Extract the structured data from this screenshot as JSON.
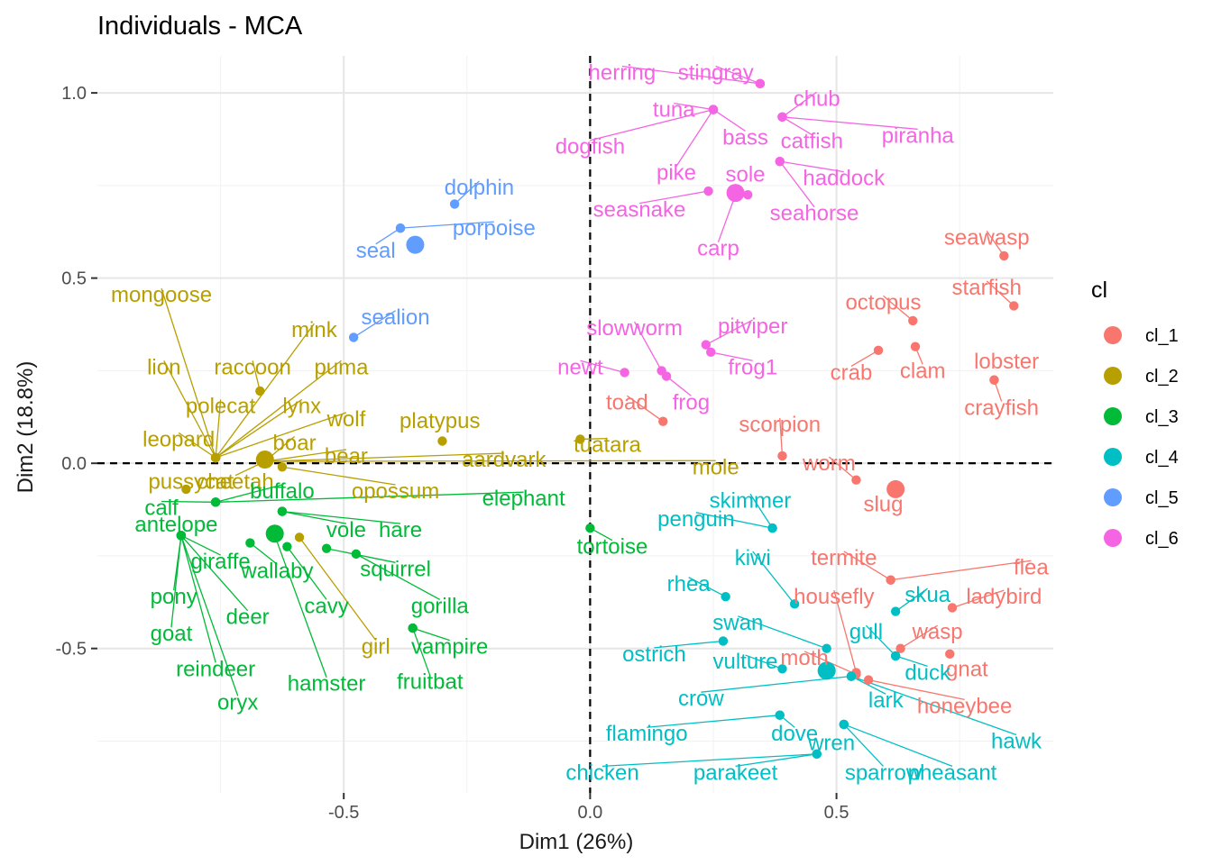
{
  "chart_data": {
    "type": "scatter",
    "title": "Individuals - MCA",
    "xlabel": "Dim1 (26%)",
    "ylabel": "Dim2 (18.8%)",
    "xlim": [
      -1.0,
      0.94
    ],
    "ylim": [
      -0.89,
      1.1
    ],
    "x_ticks": [
      -0.5,
      0.0,
      0.5
    ],
    "y_ticks": [
      -0.5,
      0.0,
      0.5,
      1.0
    ],
    "x_tick_labels": [
      "-0.5",
      "0.0",
      "0.5"
    ],
    "y_tick_labels": [
      "-0.5",
      "0.0",
      "0.5",
      "1.0"
    ],
    "grid": true,
    "reference_lines": [
      0,
      0
    ],
    "legend": {
      "title": "cl",
      "placement": "right",
      "entries": [
        "cl_1",
        "cl_2",
        "cl_3",
        "cl_4",
        "cl_5",
        "cl_6"
      ]
    },
    "colors": {
      "cl_1": "#F8766D",
      "cl_2": "#B79F00",
      "cl_3": "#00BA38",
      "cl_4": "#00BFC4",
      "cl_5": "#619CFF",
      "cl_6": "#F564E3"
    },
    "centroids": [
      {
        "cluster": "cl_1",
        "x": 0.62,
        "y": -0.07
      },
      {
        "cluster": "cl_2",
        "x": -0.66,
        "y": 0.01
      },
      {
        "cluster": "cl_3",
        "x": -0.64,
        "y": -0.19
      },
      {
        "cluster": "cl_4",
        "x": 0.48,
        "y": -0.56
      },
      {
        "cluster": "cl_5",
        "x": -0.355,
        "y": 0.59
      },
      {
        "cluster": "cl_6",
        "x": 0.295,
        "y": 0.73
      }
    ],
    "points": [
      {
        "label": "seawasp",
        "x": 0.84,
        "y": 0.56,
        "cluster": "cl_1",
        "lx": 0.805,
        "ly": 0.61
      },
      {
        "label": "starfish",
        "x": 0.86,
        "y": 0.425,
        "cluster": "cl_1",
        "lx": 0.805,
        "ly": 0.475
      },
      {
        "label": "octopus",
        "x": 0.655,
        "y": 0.385,
        "cluster": "cl_1",
        "lx": 0.595,
        "ly": 0.435
      },
      {
        "label": "clam",
        "x": 0.66,
        "y": 0.315,
        "cluster": "cl_1",
        "lx": 0.675,
        "ly": 0.25
      },
      {
        "label": "crab",
        "x": 0.585,
        "y": 0.305,
        "cluster": "cl_1",
        "lx": 0.53,
        "ly": 0.245
      },
      {
        "label": "lobster",
        "x": 0.82,
        "y": 0.225,
        "cluster": "cl_1",
        "lx": 0.845,
        "ly": 0.275
      },
      {
        "label": "crayfish",
        "x": 0.82,
        "y": 0.225,
        "cluster": "cl_1",
        "lx": 0.835,
        "ly": 0.15
      },
      {
        "label": "toad",
        "x": 0.148,
        "y": 0.113,
        "cluster": "cl_1",
        "lx": 0.075,
        "ly": 0.165
      },
      {
        "label": "scorpion",
        "x": 0.39,
        "y": 0.02,
        "cluster": "cl_1",
        "lx": 0.385,
        "ly": 0.105
      },
      {
        "label": "worm",
        "x": 0.54,
        "y": -0.045,
        "cluster": "cl_1",
        "lx": 0.485,
        "ly": 0.0
      },
      {
        "label": "slug",
        "x": 0.62,
        "y": -0.07,
        "cluster": "cl_1",
        "lx": 0.595,
        "ly": -0.11
      },
      {
        "label": "termite",
        "x": 0.61,
        "y": -0.315,
        "cluster": "cl_1",
        "lx": 0.515,
        "ly": -0.255
      },
      {
        "label": "flea",
        "x": 0.61,
        "y": -0.315,
        "cluster": "cl_1",
        "lx": 0.895,
        "ly": -0.28
      },
      {
        "label": "housefly",
        "x": 0.54,
        "y": -0.565,
        "cluster": "cl_1",
        "lx": 0.495,
        "ly": -0.36
      },
      {
        "label": "ladybird",
        "x": 0.735,
        "y": -0.39,
        "cluster": "cl_1",
        "lx": 0.84,
        "ly": -0.36
      },
      {
        "label": "wasp",
        "x": 0.63,
        "y": -0.5,
        "cluster": "cl_1",
        "lx": 0.705,
        "ly": -0.455
      },
      {
        "label": "gnat",
        "x": 0.73,
        "y": -0.515,
        "cluster": "cl_1",
        "lx": 0.765,
        "ly": -0.555
      },
      {
        "label": "moth",
        "x": 0.54,
        "y": -0.57,
        "cluster": "cl_1",
        "lx": 0.435,
        "ly": -0.525
      },
      {
        "label": "honeybee",
        "x": 0.565,
        "y": -0.585,
        "cluster": "cl_1",
        "lx": 0.76,
        "ly": -0.655
      },
      {
        "label": "mongoose",
        "x": -0.76,
        "y": 0.015,
        "cluster": "cl_2",
        "lx": -0.87,
        "ly": 0.455
      },
      {
        "label": "mink",
        "x": -0.76,
        "y": 0.015,
        "cluster": "cl_2",
        "lx": -0.56,
        "ly": 0.36
      },
      {
        "label": "lion",
        "x": -0.76,
        "y": 0.015,
        "cluster": "cl_2",
        "lx": -0.865,
        "ly": 0.26
      },
      {
        "label": "raccoon",
        "x": -0.67,
        "y": 0.195,
        "cluster": "cl_2",
        "lx": -0.685,
        "ly": 0.26
      },
      {
        "label": "puma",
        "x": -0.76,
        "y": 0.015,
        "cluster": "cl_2",
        "lx": -0.505,
        "ly": 0.26
      },
      {
        "label": "polecat",
        "x": -0.76,
        "y": 0.015,
        "cluster": "cl_2",
        "lx": -0.75,
        "ly": 0.155
      },
      {
        "label": "lynx",
        "x": -0.76,
        "y": 0.015,
        "cluster": "cl_2",
        "lx": -0.585,
        "ly": 0.155
      },
      {
        "label": "wolf",
        "x": -0.76,
        "y": 0.015,
        "cluster": "cl_2",
        "lx": -0.495,
        "ly": 0.12
      },
      {
        "label": "leopard",
        "x": -0.76,
        "y": 0.015,
        "cluster": "cl_2",
        "lx": -0.835,
        "ly": 0.065
      },
      {
        "label": "boar",
        "x": -0.66,
        "y": 0.005,
        "cluster": "cl_2",
        "lx": -0.6,
        "ly": 0.055
      },
      {
        "label": "bear",
        "x": -0.66,
        "y": 0.005,
        "cluster": "cl_2",
        "lx": -0.495,
        "ly": 0.02
      },
      {
        "label": "platypus",
        "x": -0.3,
        "y": 0.06,
        "cluster": "cl_2",
        "lx": -0.305,
        "ly": 0.115
      },
      {
        "label": "aardvark",
        "x": -0.66,
        "y": 0.005,
        "cluster": "cl_2",
        "lx": -0.175,
        "ly": 0.01
      },
      {
        "label": "tuatara",
        "x": -0.02,
        "y": 0.065,
        "cluster": "cl_2",
        "lx": 0.035,
        "ly": 0.05
      },
      {
        "label": "mole",
        "x": -0.66,
        "y": 0.005,
        "cluster": "cl_2",
        "lx": 0.255,
        "ly": -0.01
      },
      {
        "label": "pussycat",
        "x": -0.82,
        "y": -0.07,
        "cluster": "cl_2",
        "lx": -0.81,
        "ly": -0.05
      },
      {
        "label": "cheetah",
        "x": -0.66,
        "y": 0.005,
        "cluster": "cl_2",
        "lx": -0.72,
        "ly": -0.05
      },
      {
        "label": "opossum",
        "x": -0.625,
        "y": -0.01,
        "cluster": "cl_2",
        "lx": -0.395,
        "ly": -0.075
      },
      {
        "label": "girl",
        "x": -0.59,
        "y": -0.2,
        "cluster": "cl_2",
        "lx": -0.435,
        "ly": -0.495
      },
      {
        "label": "buffalo",
        "x": -0.76,
        "y": -0.105,
        "cluster": "cl_3",
        "lx": -0.625,
        "ly": -0.075
      },
      {
        "label": "elephant",
        "x": -0.76,
        "y": -0.105,
        "cluster": "cl_3",
        "lx": -0.135,
        "ly": -0.095
      },
      {
        "label": "calf",
        "x": -0.76,
        "y": -0.105,
        "cluster": "cl_3",
        "lx": -0.87,
        "ly": -0.12
      },
      {
        "label": "antelope",
        "x": -0.83,
        "y": -0.195,
        "cluster": "cl_3",
        "lx": -0.84,
        "ly": -0.165
      },
      {
        "label": "vole",
        "x": -0.625,
        "y": -0.13,
        "cluster": "cl_3",
        "lx": -0.495,
        "ly": -0.18
      },
      {
        "label": "hare",
        "x": -0.625,
        "y": -0.13,
        "cluster": "cl_3",
        "lx": -0.385,
        "ly": -0.18
      },
      {
        "label": "tortoise",
        "x": 0.0,
        "y": -0.175,
        "cluster": "cl_3",
        "lx": 0.045,
        "ly": -0.225
      },
      {
        "label": "giraffe",
        "x": -0.83,
        "y": -0.195,
        "cluster": "cl_3",
        "lx": -0.75,
        "ly": -0.265
      },
      {
        "label": "wallaby",
        "x": -0.69,
        "y": -0.215,
        "cluster": "cl_3",
        "lx": -0.635,
        "ly": -0.29
      },
      {
        "label": "squirrel",
        "x": -0.535,
        "y": -0.23,
        "cluster": "cl_3",
        "lx": -0.395,
        "ly": -0.285
      },
      {
        "label": "pony",
        "x": -0.83,
        "y": -0.195,
        "cluster": "cl_3",
        "lx": -0.845,
        "ly": -0.36
      },
      {
        "label": "cavy",
        "x": -0.615,
        "y": -0.225,
        "cluster": "cl_3",
        "lx": -0.535,
        "ly": -0.385
      },
      {
        "label": "gorilla",
        "x": -0.475,
        "y": -0.245,
        "cluster": "cl_3",
        "lx": -0.305,
        "ly": -0.385
      },
      {
        "label": "deer",
        "x": -0.83,
        "y": -0.195,
        "cluster": "cl_3",
        "lx": -0.695,
        "ly": -0.415
      },
      {
        "label": "goat",
        "x": -0.83,
        "y": -0.195,
        "cluster": "cl_3",
        "lx": -0.85,
        "ly": -0.46
      },
      {
        "label": "vampire",
        "x": -0.36,
        "y": -0.445,
        "cluster": "cl_3",
        "lx": -0.285,
        "ly": -0.495
      },
      {
        "label": "reindeer",
        "x": -0.83,
        "y": -0.195,
        "cluster": "cl_3",
        "lx": -0.76,
        "ly": -0.555
      },
      {
        "label": "hamster",
        "x": -0.64,
        "y": -0.195,
        "cluster": "cl_3",
        "lx": -0.535,
        "ly": -0.595
      },
      {
        "label": "fruitbat",
        "x": -0.36,
        "y": -0.445,
        "cluster": "cl_3",
        "lx": -0.325,
        "ly": -0.59
      },
      {
        "label": "oryx",
        "x": -0.83,
        "y": -0.195,
        "cluster": "cl_3",
        "lx": -0.715,
        "ly": -0.645
      },
      {
        "label": "skimmer",
        "x": 0.37,
        "y": -0.175,
        "cluster": "cl_4",
        "lx": 0.325,
        "ly": -0.1
      },
      {
        "label": "penguin",
        "x": 0.37,
        "y": -0.175,
        "cluster": "cl_4",
        "lx": 0.215,
        "ly": -0.15
      },
      {
        "label": "kiwi",
        "x": 0.415,
        "y": -0.38,
        "cluster": "cl_4",
        "lx": 0.33,
        "ly": -0.255
      },
      {
        "label": "rhea",
        "x": 0.275,
        "y": -0.36,
        "cluster": "cl_4",
        "lx": 0.2,
        "ly": -0.325
      },
      {
        "label": "skua",
        "x": 0.62,
        "y": -0.4,
        "cluster": "cl_4",
        "lx": 0.685,
        "ly": -0.355
      },
      {
        "label": "swan",
        "x": 0.48,
        "y": -0.5,
        "cluster": "cl_4",
        "lx": 0.3,
        "ly": -0.43
      },
      {
        "label": "gull",
        "x": 0.62,
        "y": -0.52,
        "cluster": "cl_4",
        "lx": 0.56,
        "ly": -0.455
      },
      {
        "label": "ostrich",
        "x": 0.27,
        "y": -0.48,
        "cluster": "cl_4",
        "lx": 0.13,
        "ly": -0.515
      },
      {
        "label": "vulture",
        "x": 0.39,
        "y": -0.555,
        "cluster": "cl_4",
        "lx": 0.315,
        "ly": -0.535
      },
      {
        "label": "duck",
        "x": 0.62,
        "y": -0.52,
        "cluster": "cl_4",
        "lx": 0.685,
        "ly": -0.565
      },
      {
        "label": "crow",
        "x": 0.53,
        "y": -0.575,
        "cluster": "cl_4",
        "lx": 0.225,
        "ly": -0.635
      },
      {
        "label": "lark",
        "x": 0.53,
        "y": -0.575,
        "cluster": "cl_4",
        "lx": 0.6,
        "ly": -0.64
      },
      {
        "label": "hawk",
        "x": 0.53,
        "y": -0.575,
        "cluster": "cl_4",
        "lx": 0.865,
        "ly": -0.75
      },
      {
        "label": "flamingo",
        "x": 0.385,
        "y": -0.68,
        "cluster": "cl_4",
        "lx": 0.115,
        "ly": -0.73
      },
      {
        "label": "dove",
        "x": 0.385,
        "y": -0.68,
        "cluster": "cl_4",
        "lx": 0.415,
        "ly": -0.73
      },
      {
        "label": "wren",
        "x": 0.515,
        "y": -0.705,
        "cluster": "cl_4",
        "lx": 0.49,
        "ly": -0.755
      },
      {
        "label": "chicken",
        "x": 0.46,
        "y": -0.785,
        "cluster": "cl_4",
        "lx": 0.025,
        "ly": -0.835
      },
      {
        "label": "parakeet",
        "x": 0.46,
        "y": -0.785,
        "cluster": "cl_4",
        "lx": 0.295,
        "ly": -0.835
      },
      {
        "label": "sparrow",
        "x": 0.515,
        "y": -0.705,
        "cluster": "cl_4",
        "lx": 0.595,
        "ly": -0.835
      },
      {
        "label": "pheasant",
        "x": 0.515,
        "y": -0.705,
        "cluster": "cl_4",
        "lx": 0.735,
        "ly": -0.835
      },
      {
        "label": "dolphin",
        "x": -0.275,
        "y": 0.7,
        "cluster": "cl_5",
        "lx": -0.225,
        "ly": 0.745
      },
      {
        "label": "porpoise",
        "x": -0.385,
        "y": 0.635,
        "cluster": "cl_5",
        "lx": -0.195,
        "ly": 0.635
      },
      {
        "label": "seal",
        "x": -0.385,
        "y": 0.635,
        "cluster": "cl_5",
        "lx": -0.435,
        "ly": 0.575
      },
      {
        "label": "sealion",
        "x": -0.48,
        "y": 0.34,
        "cluster": "cl_5",
        "lx": -0.395,
        "ly": 0.395
      },
      {
        "label": "herring",
        "x": 0.345,
        "y": 1.025,
        "cluster": "cl_6",
        "lx": 0.065,
        "ly": 1.055
      },
      {
        "label": "stingray",
        "x": 0.345,
        "y": 1.025,
        "cluster": "cl_6",
        "lx": 0.255,
        "ly": 1.055
      },
      {
        "label": "chub",
        "x": 0.39,
        "y": 0.935,
        "cluster": "cl_6",
        "lx": 0.46,
        "ly": 0.985
      },
      {
        "label": "tuna",
        "x": 0.25,
        "y": 0.955,
        "cluster": "cl_6",
        "lx": 0.17,
        "ly": 0.955
      },
      {
        "label": "bass",
        "x": 0.25,
        "y": 0.955,
        "cluster": "cl_6",
        "lx": 0.315,
        "ly": 0.88
      },
      {
        "label": "catfish",
        "x": 0.39,
        "y": 0.935,
        "cluster": "cl_6",
        "lx": 0.45,
        "ly": 0.87
      },
      {
        "label": "piranha",
        "x": 0.39,
        "y": 0.935,
        "cluster": "cl_6",
        "lx": 0.665,
        "ly": 0.885
      },
      {
        "label": "dogfish",
        "x": 0.25,
        "y": 0.955,
        "cluster": "cl_6",
        "lx": 0.0,
        "ly": 0.855
      },
      {
        "label": "pike",
        "x": 0.25,
        "y": 0.955,
        "cluster": "cl_6",
        "lx": 0.175,
        "ly": 0.785
      },
      {
        "label": "sole",
        "x": 0.32,
        "y": 0.725,
        "cluster": "cl_6",
        "lx": 0.315,
        "ly": 0.78
      },
      {
        "label": "haddock",
        "x": 0.385,
        "y": 0.815,
        "cluster": "cl_6",
        "lx": 0.515,
        "ly": 0.77
      },
      {
        "label": "seasnake",
        "x": 0.24,
        "y": 0.735,
        "cluster": "cl_6",
        "lx": 0.1,
        "ly": 0.685
      },
      {
        "label": "seahorse",
        "x": 0.385,
        "y": 0.815,
        "cluster": "cl_6",
        "lx": 0.455,
        "ly": 0.675
      },
      {
        "label": "carp",
        "x": 0.295,
        "y": 0.725,
        "cluster": "cl_6",
        "lx": 0.26,
        "ly": 0.58
      },
      {
        "label": "slowworm",
        "x": 0.145,
        "y": 0.25,
        "cluster": "cl_6",
        "lx": 0.09,
        "ly": 0.365
      },
      {
        "label": "pitviper",
        "x": 0.235,
        "y": 0.32,
        "cluster": "cl_6",
        "lx": 0.33,
        "ly": 0.37
      },
      {
        "label": "newt",
        "x": 0.07,
        "y": 0.245,
        "cluster": "cl_6",
        "lx": -0.02,
        "ly": 0.26
      },
      {
        "label": "frog1",
        "x": 0.245,
        "y": 0.3,
        "cluster": "cl_6",
        "lx": 0.33,
        "ly": 0.26
      },
      {
        "label": "frog",
        "x": 0.155,
        "y": 0.235,
        "cluster": "cl_6",
        "lx": 0.205,
        "ly": 0.165
      }
    ]
  }
}
